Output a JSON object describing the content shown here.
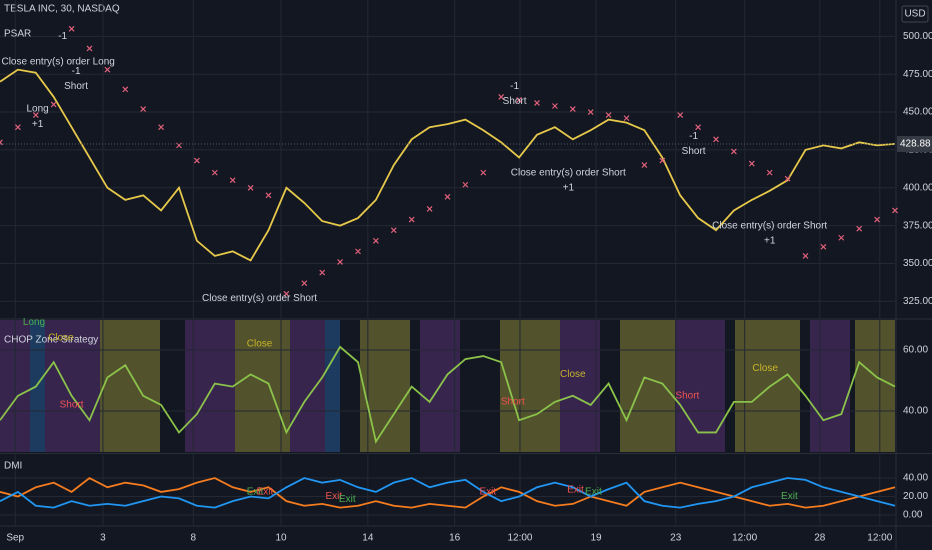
{
  "header": {
    "symbol": "TESLA INC, 30, NASDAQ",
    "currency": "USD"
  },
  "chart_data": [
    {
      "type": "line",
      "title": "PSAR",
      "xlim": [
        0,
        100
      ],
      "ylim": [
        314,
        524
      ],
      "yticks": [
        {
          "value": 325,
          "label": "325.00"
        },
        {
          "value": 350,
          "label": "350.00"
        },
        {
          "value": 375,
          "label": "375.00"
        },
        {
          "value": 400,
          "label": "400.00"
        },
        {
          "value": 425,
          "label": "425.00"
        },
        {
          "value": 450,
          "label": "450.00"
        },
        {
          "value": 475,
          "label": "475.00"
        },
        {
          "value": 500,
          "label": "500.00"
        }
      ],
      "last_price": 428.88,
      "last_price_color": "#ffffff",
      "x": [
        0,
        2,
        4,
        6,
        8,
        10,
        12,
        14,
        16,
        18,
        20,
        22,
        24,
        26,
        28,
        30,
        32,
        34,
        36,
        38,
        40,
        42,
        44,
        46,
        48,
        50,
        52,
        54,
        56,
        58,
        60,
        62,
        64,
        66,
        68,
        70,
        72,
        74,
        76,
        78,
        80,
        82,
        84,
        86,
        88,
        90,
        92,
        94,
        96,
        98,
        100
      ],
      "series": [
        {
          "color": "#e6c84a",
          "marker": "line",
          "values": [
            470,
            478,
            476,
            460,
            440,
            420,
            400,
            392,
            395,
            385,
            400,
            365,
            355,
            358,
            352,
            372,
            400,
            390,
            378,
            375,
            380,
            392,
            415,
            432,
            440,
            442,
            445,
            438,
            430,
            420,
            435,
            440,
            432,
            438,
            445,
            443,
            438,
            420,
            395,
            380,
            372,
            385,
            392,
            398,
            405,
            425,
            428,
            426,
            430,
            428,
            429
          ]
        },
        {
          "color": "#e0607a",
          "marker": "x",
          "values": [
            430,
            440,
            448,
            455,
            505,
            492,
            478,
            465,
            452,
            440,
            428,
            418,
            410,
            405,
            400,
            395,
            330,
            337,
            344,
            351,
            358,
            365,
            372,
            379,
            386,
            394,
            402,
            410,
            460,
            458,
            456,
            454,
            452,
            450,
            448,
            446,
            415,
            418,
            448,
            440,
            432,
            424,
            416,
            410,
            406,
            355,
            361,
            367,
            373,
            379,
            385
          ]
        }
      ],
      "annotations": [
        {
          "text": "Close entry(s) order Long",
          "x": 6.5,
          "y": 483,
          "color": "#d1d4dc"
        },
        {
          "text": "-1",
          "x": 7,
          "y": 500,
          "color": "#d1d4dc"
        },
        {
          "text": "-1",
          "x": 8.5,
          "y": 477,
          "color": "#d1d4dc"
        },
        {
          "text": "Short",
          "x": 8.5,
          "y": 467,
          "color": "#d1d4dc"
        },
        {
          "text": "Long",
          "x": 4.2,
          "y": 452,
          "color": "#d1d4dc"
        },
        {
          "text": "+1",
          "x": 4.2,
          "y": 442,
          "color": "#d1d4dc"
        },
        {
          "text": "Close entry(s) order Short",
          "x": 29,
          "y": 327,
          "color": "#d1d4dc"
        },
        {
          "text": "-1",
          "x": 57.5,
          "y": 467,
          "color": "#d1d4dc"
        },
        {
          "text": "Short",
          "x": 57.5,
          "y": 457,
          "color": "#d1d4dc"
        },
        {
          "text": "Close entry(s) order Short",
          "x": 63.5,
          "y": 410,
          "color": "#d1d4dc"
        },
        {
          "text": "+1",
          "x": 63.5,
          "y": 400,
          "color": "#d1d4dc"
        },
        {
          "text": "-1",
          "x": 77.5,
          "y": 434,
          "color": "#d1d4dc"
        },
        {
          "text": "Short",
          "x": 77.5,
          "y": 424,
          "color": "#d1d4dc"
        },
        {
          "text": "Close entry(s) order Short",
          "x": 86,
          "y": 375,
          "color": "#d1d4dc"
        },
        {
          "text": "+1",
          "x": 86,
          "y": 365,
          "color": "#d1d4dc"
        }
      ]
    },
    {
      "type": "line",
      "title": "CHOP Zone Strategy",
      "xlim": [
        0,
        100
      ],
      "ylim": [
        26.6,
        69.8
      ],
      "yticks": [
        {
          "value": 40,
          "label": "40.00"
        },
        {
          "value": 60,
          "label": "60.00"
        }
      ],
      "x": [
        0,
        2,
        4,
        6,
        8,
        10,
        12,
        14,
        16,
        18,
        20,
        22,
        24,
        26,
        28,
        30,
        32,
        34,
        36,
        38,
        40,
        42,
        44,
        46,
        48,
        50,
        52,
        54,
        56,
        58,
        60,
        62,
        64,
        66,
        68,
        70,
        72,
        74,
        76,
        78,
        80,
        82,
        84,
        86,
        88,
        90,
        92,
        94,
        96,
        98,
        100
      ],
      "series": [
        {
          "color": "#8bc34a",
          "marker": "line",
          "values": [
            37,
            45,
            48,
            56,
            45,
            37,
            51,
            55,
            45,
            42,
            33,
            39,
            49,
            48,
            52,
            49,
            33,
            43,
            51,
            61,
            56,
            30,
            39,
            48,
            43,
            52,
            57,
            58,
            56,
            37,
            39,
            43,
            45,
            42,
            49,
            37,
            51,
            49,
            42,
            33,
            33,
            43,
            43,
            48,
            52,
            45,
            37,
            39,
            56,
            51,
            48
          ]
        }
      ],
      "annotations": [
        {
          "text": "Long",
          "x": 3.8,
          "y": 69,
          "color": "#4caf50"
        },
        {
          "text": "Close",
          "x": 6.8,
          "y": 64,
          "color": "#c8b52a"
        },
        {
          "text": "Short",
          "x": 8,
          "y": 42,
          "color": "#ef5350"
        },
        {
          "text": "Close",
          "x": 29,
          "y": 62,
          "color": "#c8b52a"
        },
        {
          "text": "Short",
          "x": 57.3,
          "y": 43,
          "color": "#ef5350"
        },
        {
          "text": "Close",
          "x": 64,
          "y": 52,
          "color": "#c8b52a"
        },
        {
          "text": "Short",
          "x": 76.8,
          "y": 45,
          "color": "#ef5350"
        },
        {
          "text": "Close",
          "x": 85.5,
          "y": 54,
          "color": "#c8b52a"
        }
      ]
    },
    {
      "type": "line",
      "title": "DMI",
      "xlim": [
        0,
        100
      ],
      "ylim": [
        -10.8,
        64.9
      ],
      "yticks": [
        {
          "value": 0,
          "label": "0.00"
        },
        {
          "value": 20,
          "label": "20.00"
        },
        {
          "value": 40,
          "label": "40.00"
        }
      ],
      "xticks": [
        {
          "value": 1.7,
          "label": "Sep"
        },
        {
          "value": 11.5,
          "label": "3"
        },
        {
          "value": 21.6,
          "label": "8"
        },
        {
          "value": 31.4,
          "label": "10"
        },
        {
          "value": 41.1,
          "label": "14"
        },
        {
          "value": 50.8,
          "label": "16"
        },
        {
          "value": 58.1,
          "label": "12:00"
        },
        {
          "value": 66.6,
          "label": "19"
        },
        {
          "value": 75.5,
          "label": "23"
        },
        {
          "value": 83.2,
          "label": "12:00"
        },
        {
          "value": 91.6,
          "label": "28"
        },
        {
          "value": 98.3,
          "label": "12:00"
        }
      ],
      "x": [
        0,
        2,
        4,
        6,
        8,
        10,
        12,
        14,
        16,
        18,
        20,
        22,
        24,
        26,
        28,
        30,
        32,
        34,
        36,
        38,
        40,
        42,
        44,
        46,
        48,
        50,
        52,
        54,
        56,
        58,
        60,
        62,
        64,
        66,
        68,
        70,
        72,
        74,
        76,
        78,
        80,
        82,
        84,
        86,
        88,
        90,
        92,
        94,
        96,
        98,
        100
      ],
      "series": [
        {
          "color": "#f57c1f",
          "marker": "line",
          "values": [
            25,
            20,
            30,
            35,
            25,
            40,
            30,
            35,
            32,
            25,
            28,
            35,
            40,
            30,
            25,
            30,
            15,
            10,
            12,
            8,
            10,
            15,
            10,
            8,
            12,
            10,
            8,
            20,
            30,
            25,
            15,
            10,
            12,
            20,
            15,
            10,
            25,
            30,
            35,
            30,
            25,
            20,
            15,
            10,
            12,
            8,
            10,
            15,
            20,
            25,
            30
          ]
        },
        {
          "color": "#2196f3",
          "marker": "line",
          "values": [
            15,
            25,
            10,
            8,
            15,
            10,
            12,
            10,
            15,
            20,
            18,
            10,
            8,
            15,
            20,
            18,
            30,
            40,
            35,
            38,
            30,
            25,
            35,
            40,
            30,
            35,
            38,
            25,
            15,
            20,
            30,
            35,
            30,
            20,
            28,
            35,
            15,
            10,
            8,
            12,
            15,
            20,
            30,
            35,
            40,
            38,
            30,
            25,
            20,
            15,
            10
          ]
        }
      ],
      "annotations": [
        {
          "text": "Exit",
          "x": 28.5,
          "y": 25,
          "color": "#4caf50"
        },
        {
          "text": "Exit",
          "x": 29.6,
          "y": 25,
          "color": "#ef5350"
        },
        {
          "text": "Exit",
          "x": 37.3,
          "y": 20,
          "color": "#ef5350"
        },
        {
          "text": "Exit",
          "x": 38.8,
          "y": 17,
          "color": "#4caf50"
        },
        {
          "text": "Exit",
          "x": 54.5,
          "y": 25,
          "color": "#ef5350"
        },
        {
          "text": "Exit",
          "x": 64.3,
          "y": 27,
          "color": "#ef5350"
        },
        {
          "text": "Exit",
          "x": 66.3,
          "y": 25,
          "color": "#4caf50"
        },
        {
          "text": "Exit",
          "x": 88.2,
          "y": 20,
          "color": "#4caf50"
        }
      ]
    }
  ]
}
